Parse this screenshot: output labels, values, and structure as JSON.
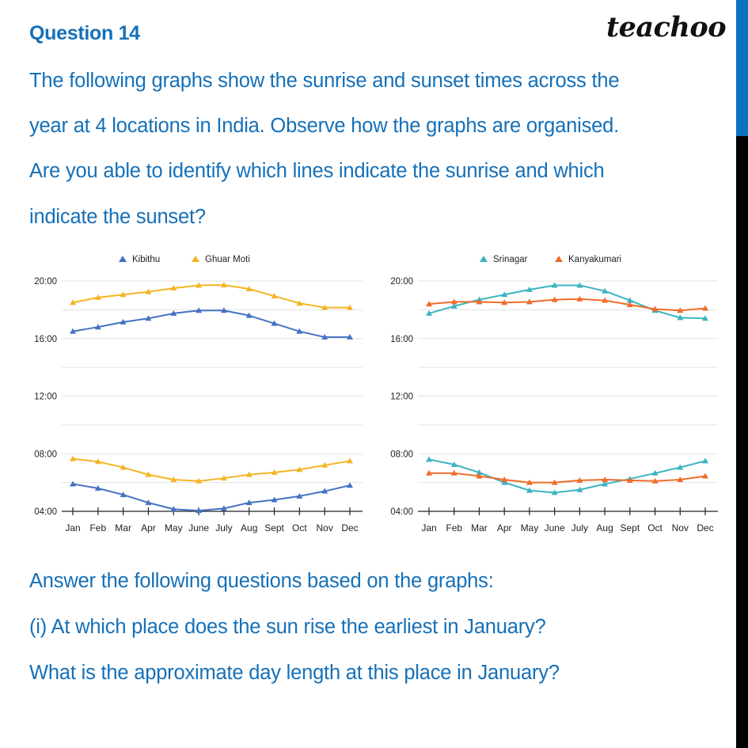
{
  "header": {
    "question_title": "Question 14",
    "logo": "teachoo"
  },
  "intro_lines": [
    "The following graphs show the sunrise and sunset times across the",
    "year at 4 locations in India. Observe how the graphs are organised.",
    "Are you able to identify which lines indicate the sunrise and which",
    "indicate the sunset?"
  ],
  "questions": {
    "lead": "Answer the following questions based on the graphs:",
    "q1_line1": "(i) At which place does the sun rise the earliest in January?",
    "q1_line2": "What is the approximate day length at this place in January?"
  },
  "colors": {
    "text_blue": "#1570b8",
    "kibithu": "#4472c4",
    "ghuar_moti": "#f4b524",
    "srinagar": "#3bb4c1",
    "kanyakumari": "#ef6c2a",
    "grid": "#e3e3e3",
    "axis": "#222222"
  },
  "chart_data": [
    {
      "type": "line",
      "title": "",
      "legend": [
        "Kibithu",
        "Ghuar Moti"
      ],
      "legend_position": "top",
      "xlabel": "",
      "ylabel": "",
      "categories": [
        "Jan",
        "Feb",
        "Mar",
        "Apr",
        "May",
        "June",
        "July",
        "Aug",
        "Sept",
        "Oct",
        "Nov",
        "Dec"
      ],
      "yticks": [
        "04:00",
        "08:00",
        "12:00",
        "16:00",
        "20:00"
      ],
      "ylim": [
        4,
        20
      ],
      "grid": true,
      "series": [
        {
          "name": "Kibithu",
          "line": "sunset",
          "color": "#4472c4",
          "values": [
            16.5,
            16.8,
            17.15,
            17.4,
            17.75,
            17.95,
            17.95,
            17.6,
            17.05,
            16.5,
            16.1,
            16.1
          ]
        },
        {
          "name": "Ghuar Moti",
          "line": "sunset",
          "color": "#f4b524",
          "values": [
            18.5,
            18.85,
            19.05,
            19.25,
            19.5,
            19.7,
            19.72,
            19.45,
            18.95,
            18.45,
            18.15,
            18.15
          ]
        },
        {
          "name": "Kibithu",
          "line": "sunrise",
          "color": "#4472c4",
          "values": [
            5.9,
            5.6,
            5.15,
            4.6,
            4.15,
            4.05,
            4.2,
            4.6,
            4.8,
            5.05,
            5.4,
            5.8
          ]
        },
        {
          "name": "Ghuar Moti",
          "line": "sunrise",
          "color": "#f4b524",
          "values": [
            7.65,
            7.45,
            7.05,
            6.55,
            6.2,
            6.1,
            6.3,
            6.55,
            6.7,
            6.9,
            7.2,
            7.5
          ]
        }
      ]
    },
    {
      "type": "line",
      "title": "",
      "legend": [
        "Srinagar",
        "Kanyakumari"
      ],
      "legend_position": "top",
      "xlabel": "",
      "ylabel": "",
      "categories": [
        "Jan",
        "Feb",
        "Mar",
        "Apr",
        "May",
        "June",
        "July",
        "Aug",
        "Sept",
        "Oct",
        "Nov",
        "Dec"
      ],
      "yticks": [
        "04:00",
        "08:00",
        "12:00",
        "16:00",
        "20:00"
      ],
      "ylim": [
        4,
        20
      ],
      "grid": true,
      "series": [
        {
          "name": "Srinagar",
          "line": "sunset",
          "color": "#3bb4c1",
          "values": [
            17.75,
            18.25,
            18.7,
            19.05,
            19.4,
            19.7,
            19.7,
            19.3,
            18.65,
            17.95,
            17.45,
            17.4
          ]
        },
        {
          "name": "Kanyakumari",
          "line": "sunset",
          "color": "#ef6c2a",
          "values": [
            18.4,
            18.55,
            18.55,
            18.5,
            18.55,
            18.7,
            18.75,
            18.65,
            18.35,
            18.05,
            17.95,
            18.1
          ]
        },
        {
          "name": "Srinagar",
          "line": "sunrise",
          "color": "#3bb4c1",
          "values": [
            7.6,
            7.25,
            6.7,
            6.0,
            5.45,
            5.3,
            5.5,
            5.9,
            6.25,
            6.65,
            7.05,
            7.5
          ]
        },
        {
          "name": "Kanyakumari",
          "line": "sunrise",
          "color": "#ef6c2a",
          "values": [
            6.65,
            6.65,
            6.45,
            6.2,
            6.0,
            6.0,
            6.15,
            6.2,
            6.15,
            6.1,
            6.2,
            6.45
          ]
        }
      ]
    }
  ]
}
